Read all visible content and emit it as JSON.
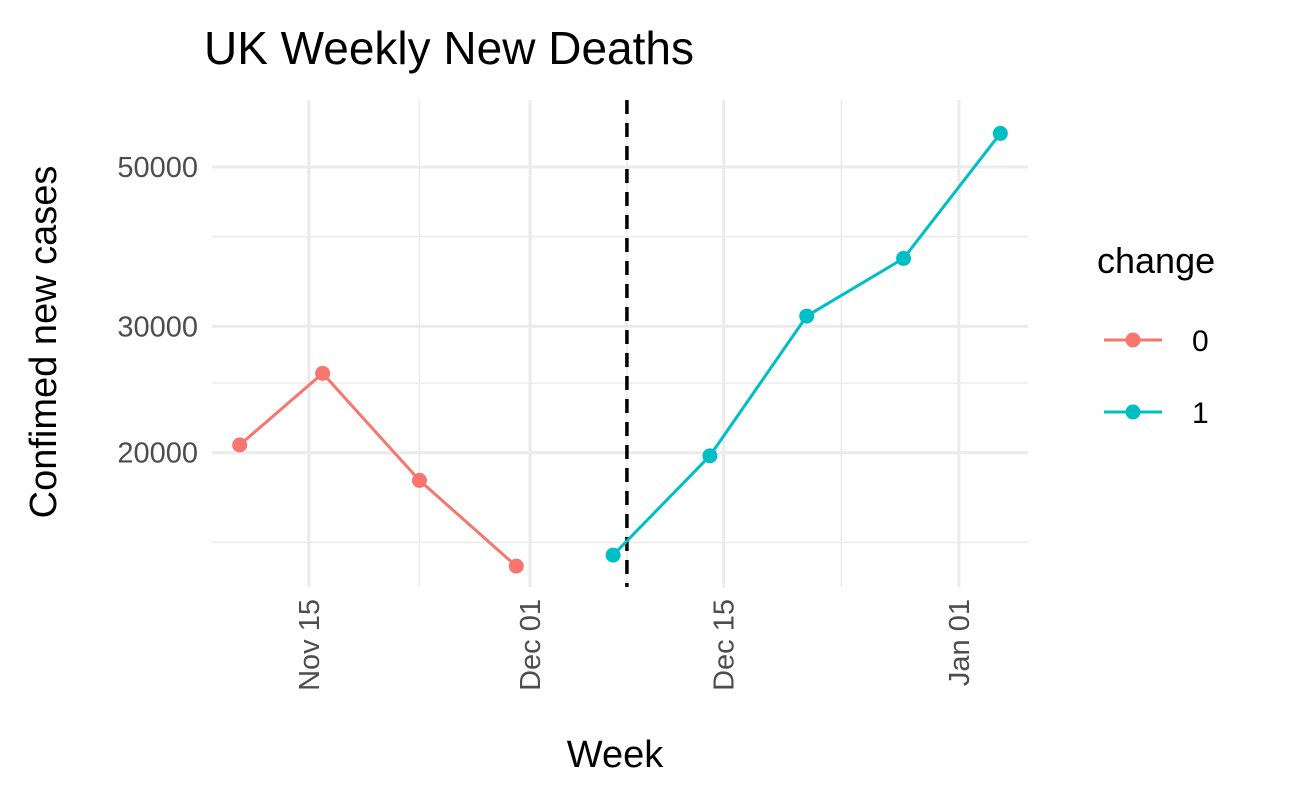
{
  "chart_data": {
    "type": "line",
    "title": "UK Weekly New Deaths",
    "xlabel": "Week",
    "ylabel": "Confimed new cases",
    "y_scale": "log",
    "x_ticks": [
      {
        "date": "2020-11-15",
        "label": "Nov 15"
      },
      {
        "date": "2020-12-01",
        "label": "Dec 01"
      },
      {
        "date": "2020-12-15",
        "label": "Dec 15"
      },
      {
        "date": "2021-01-01",
        "label": "Jan 01"
      }
    ],
    "y_ticks": [
      {
        "value": 20000,
        "label": "20000"
      },
      {
        "value": 30000,
        "label": "30000"
      },
      {
        "value": 50000,
        "label": "50000"
      }
    ],
    "y_minor_gridlines": [
      15000,
      25000,
      40000
    ],
    "xlim": [
      "2020-11-08",
      "2021-01-06"
    ],
    "ylim": [
      13000,
      62000
    ],
    "grid": true,
    "legend": {
      "title": "change",
      "position": "right"
    },
    "vline": {
      "x": "2020-12-08",
      "style": "dashed",
      "color": "#000000"
    },
    "series": [
      {
        "name": "0",
        "color": "#F8766D",
        "points": [
          {
            "x": "2020-11-10",
            "y": 20500
          },
          {
            "x": "2020-11-16",
            "y": 25800
          },
          {
            "x": "2020-11-23",
            "y": 18300
          },
          {
            "x": "2020-11-30",
            "y": 13900
          }
        ]
      },
      {
        "name": "1",
        "color": "#00BFC4",
        "points": [
          {
            "x": "2020-12-07",
            "y": 14400
          },
          {
            "x": "2020-12-14",
            "y": 19800
          },
          {
            "x": "2020-12-21",
            "y": 31000
          },
          {
            "x": "2020-12-28",
            "y": 37300
          },
          {
            "x": "2021-01-04",
            "y": 55700
          }
        ]
      }
    ]
  }
}
